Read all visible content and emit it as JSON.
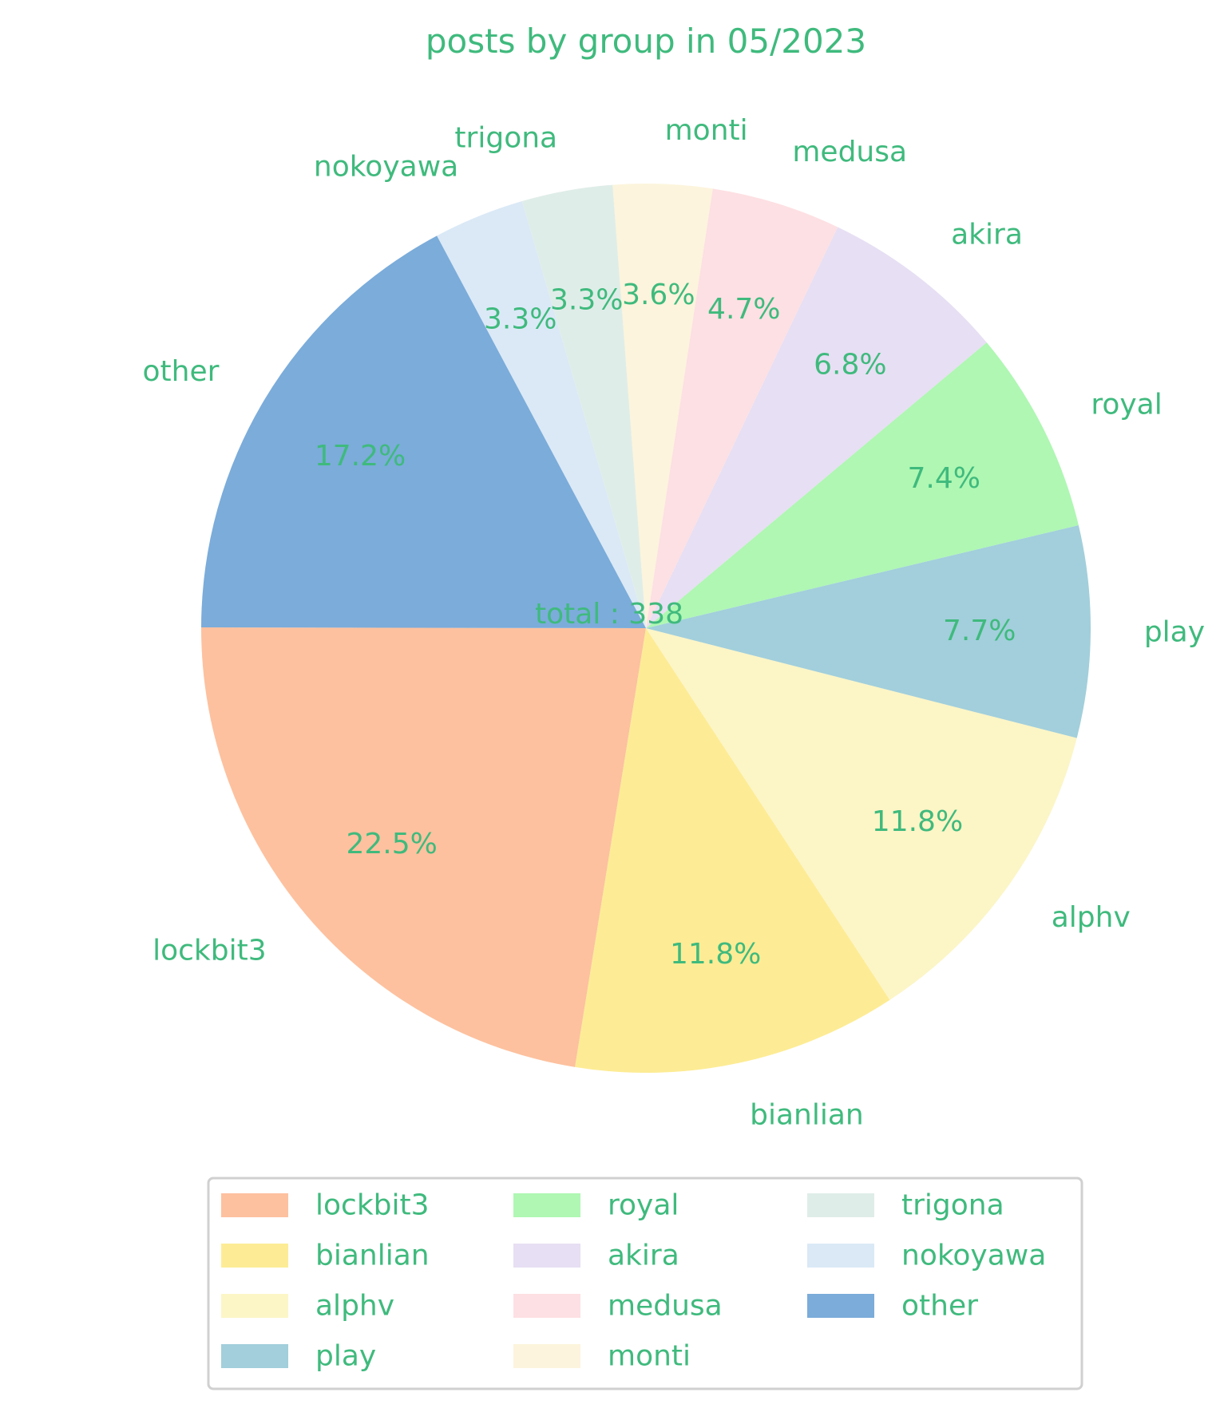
{
  "chart_data": {
    "type": "pie",
    "title": "posts by group in 05/2023",
    "center_text": "total : 338",
    "total": 338,
    "slices": [
      {
        "label": "lockbit3",
        "percent_label": "22.5%",
        "value": 22.5,
        "color": "#fdc19f"
      },
      {
        "label": "bianlian",
        "percent_label": "11.8%",
        "value": 11.8,
        "color": "#fdec95"
      },
      {
        "label": "alphv",
        "percent_label": "11.8%",
        "value": 11.8,
        "color": "#fcf5c6"
      },
      {
        "label": "play",
        "percent_label": "7.7%",
        "value": 7.7,
        "color": "#a2cfdb"
      },
      {
        "label": "royal",
        "percent_label": "7.4%",
        "value": 7.4,
        "color": "#aff7b3"
      },
      {
        "label": "akira",
        "percent_label": "6.8%",
        "value": 6.8,
        "color": "#e7dff3"
      },
      {
        "label": "medusa",
        "percent_label": "4.7%",
        "value": 4.7,
        "color": "#fde0e3"
      },
      {
        "label": "monti",
        "percent_label": "3.6%",
        "value": 3.6,
        "color": "#fcf4dc"
      },
      {
        "label": "trigona",
        "percent_label": "3.3%",
        "value": 3.3,
        "color": "#dfede8"
      },
      {
        "label": "nokoyawa",
        "percent_label": "3.3%",
        "value": 3.3,
        "color": "#dbe9f6"
      },
      {
        "label": "other",
        "percent_label": "17.2%",
        "value": 17.2,
        "color": "#7bacda"
      }
    ],
    "text_color": "#3fba7d",
    "legend_position": "bottom",
    "legend_columns": 3
  }
}
